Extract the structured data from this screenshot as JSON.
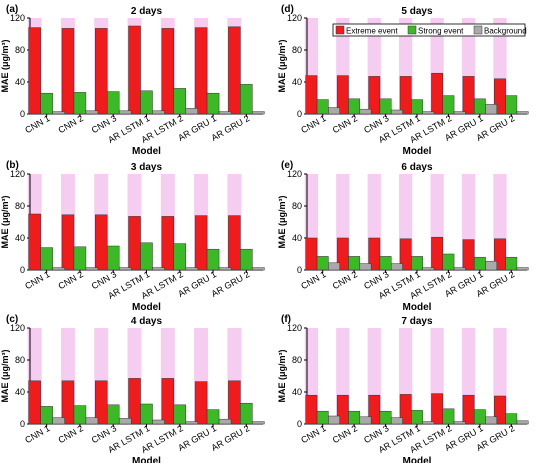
{
  "figure": {
    "legend": [
      {
        "name": "Extreme event",
        "color": "#ee1c1c"
      },
      {
        "name": "Strong event",
        "color": "#3cb828"
      },
      {
        "name": "Background",
        "color": "#a9a9a9"
      }
    ],
    "legend_panel": 3,
    "highlight_color": "#f3c4ee",
    "axis_color": "#000000"
  },
  "chart_data": [
    {
      "type": "bar",
      "panel_label": "(a)",
      "title": "2 days",
      "xlabel": "Model",
      "ylabel": "MAE (μg/m³)",
      "ylim": [
        0,
        120
      ],
      "yticks": [
        0,
        40,
        80,
        120
      ],
      "grid": false,
      "categories": [
        "CNN 1",
        "CNN 2",
        "CNN 3",
        "AR LSTM 1",
        "AR LSTM 2",
        "AR GRU 1",
        "AR GRU 2"
      ],
      "series": [
        {
          "name": "Extreme event",
          "color": "#ee1c1c",
          "values": [
            108,
            107,
            107,
            110,
            107,
            108,
            109
          ]
        },
        {
          "name": "Strong event",
          "color": "#3cb828",
          "values": [
            26,
            27,
            28,
            29,
            32,
            26,
            37
          ]
        },
        {
          "name": "Background",
          "color": "#a9a9a9",
          "values": [
            3,
            4,
            4,
            4,
            7,
            3,
            3
          ]
        }
      ]
    },
    {
      "type": "bar",
      "panel_label": "(b)",
      "title": "3 days",
      "xlabel": "Model",
      "ylabel": "MAE (μg/m³)",
      "ylim": [
        0,
        120
      ],
      "yticks": [
        0,
        40,
        80,
        120
      ],
      "grid": false,
      "categories": [
        "CNN 1",
        "CNN 2",
        "CNN 3",
        "AR LSTM 1",
        "AR LSTM 2",
        "AR GRU 1",
        "AR GRU 2"
      ],
      "series": [
        {
          "name": "Extreme event",
          "color": "#ee1c1c",
          "values": [
            70,
            69,
            69,
            67,
            67,
            68,
            68
          ]
        },
        {
          "name": "Strong event",
          "color": "#3cb828",
          "values": [
            28,
            29,
            30,
            34,
            33,
            26,
            26
          ]
        },
        {
          "name": "Background",
          "color": "#a9a9a9",
          "values": [
            3,
            3,
            3,
            3,
            3,
            3,
            3
          ]
        }
      ]
    },
    {
      "type": "bar",
      "panel_label": "(c)",
      "title": "4 days",
      "xlabel": "Model",
      "ylabel": "MAE (μg/m³)",
      "ylim": [
        0,
        120
      ],
      "yticks": [
        0,
        40,
        80,
        120
      ],
      "grid": false,
      "categories": [
        "CNN 1",
        "CNN 2",
        "CNN 3",
        "AR LSTM 1",
        "AR LSTM 2",
        "AR GRU 1",
        "AR GRU 2"
      ],
      "series": [
        {
          "name": "Extreme event",
          "color": "#ee1c1c",
          "values": [
            54,
            54,
            54,
            57,
            57,
            53,
            54
          ]
        },
        {
          "name": "Strong event",
          "color": "#3cb828",
          "values": [
            22,
            23,
            24,
            25,
            24,
            18,
            26
          ]
        },
        {
          "name": "Background",
          "color": "#a9a9a9",
          "values": [
            8,
            8,
            7,
            5,
            3,
            6,
            3
          ]
        }
      ]
    },
    {
      "type": "bar",
      "panel_label": "(d)",
      "title": "5 days",
      "xlabel": "Model",
      "ylabel": "MAE (μg/m³)",
      "ylim": [
        0,
        120
      ],
      "yticks": [
        0,
        40,
        80,
        120
      ],
      "grid": false,
      "categories": [
        "CNN 1",
        "CNN 2",
        "CNN 3",
        "AR LSTM 1",
        "AR LSTM 2",
        "AR GRU 1",
        "AR GRU 2"
      ],
      "series": [
        {
          "name": "Extreme event",
          "color": "#ee1c1c",
          "values": [
            48,
            48,
            47,
            47,
            51,
            47,
            44
          ]
        },
        {
          "name": "Strong event",
          "color": "#3cb828",
          "values": [
            18,
            19,
            19,
            18,
            23,
            19,
            23
          ]
        },
        {
          "name": "Background",
          "color": "#a9a9a9",
          "values": [
            8,
            6,
            5,
            3,
            3,
            12,
            3
          ]
        }
      ]
    },
    {
      "type": "bar",
      "panel_label": "(e)",
      "title": "6 days",
      "xlabel": "Model",
      "ylabel": "MAE (μg/m³)",
      "ylim": [
        0,
        120
      ],
      "yticks": [
        0,
        40,
        80,
        120
      ],
      "grid": false,
      "categories": [
        "CNN 1",
        "CNN 2",
        "CNN 3",
        "AR LSTM 1",
        "AR LSTM 2",
        "AR GRU 1",
        "AR GRU 2"
      ],
      "series": [
        {
          "name": "Extreme event",
          "color": "#ee1c1c",
          "values": [
            40,
            40,
            40,
            39,
            41,
            38,
            39
          ]
        },
        {
          "name": "Strong event",
          "color": "#3cb828",
          "values": [
            17,
            17,
            17,
            17,
            20,
            16,
            16
          ]
        },
        {
          "name": "Background",
          "color": "#a9a9a9",
          "values": [
            9,
            8,
            8,
            3,
            3,
            11,
            3
          ]
        }
      ]
    },
    {
      "type": "bar",
      "panel_label": "(f)",
      "title": "7 days",
      "xlabel": "Model",
      "ylabel": "MAE (μg/m³)",
      "ylim": [
        0,
        120
      ],
      "yticks": [
        0,
        40,
        80,
        120
      ],
      "grid": false,
      "categories": [
        "CNN 1",
        "CNN 2",
        "CNN 3",
        "AR LSTM 1",
        "AR LSTM 2",
        "AR GRU 1",
        "AR GRU 2"
      ],
      "series": [
        {
          "name": "Extreme event",
          "color": "#ee1c1c",
          "values": [
            36,
            36,
            36,
            37,
            38,
            36,
            35
          ]
        },
        {
          "name": "Strong event",
          "color": "#3cb828",
          "values": [
            16,
            16,
            16,
            17,
            19,
            18,
            13
          ]
        },
        {
          "name": "Background",
          "color": "#a9a9a9",
          "values": [
            10,
            9,
            8,
            3,
            3,
            9,
            4
          ]
        }
      ]
    }
  ]
}
